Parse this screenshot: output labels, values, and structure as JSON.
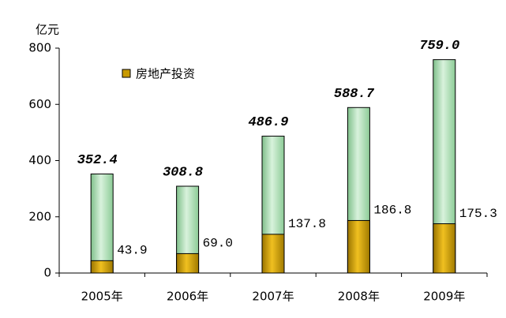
{
  "chart_data": {
    "type": "bar",
    "y_label": "亿元",
    "categories": [
      "2005年",
      "2006年",
      "2007年",
      "2008年",
      "2009年"
    ],
    "series": [
      {
        "color": "#a8dcb0",
        "values": [
          352.4,
          308.8,
          486.9,
          588.7,
          759.0
        ],
        "value_labels": [
          "352.4",
          "308.8",
          "486.9",
          "588.7",
          "759.0"
        ]
      },
      {
        "name": "房地产投资",
        "color": "#c89a00",
        "values": [
          43.9,
          69.0,
          137.8,
          186.8,
          175.3
        ],
        "value_labels": [
          "43.9",
          "69.0",
          "137.8",
          "186.8",
          "175.3"
        ]
      }
    ],
    "ylim": [
      0,
      800
    ],
    "yticks": [
      0,
      200,
      400,
      600,
      800
    ],
    "grid": false
  }
}
